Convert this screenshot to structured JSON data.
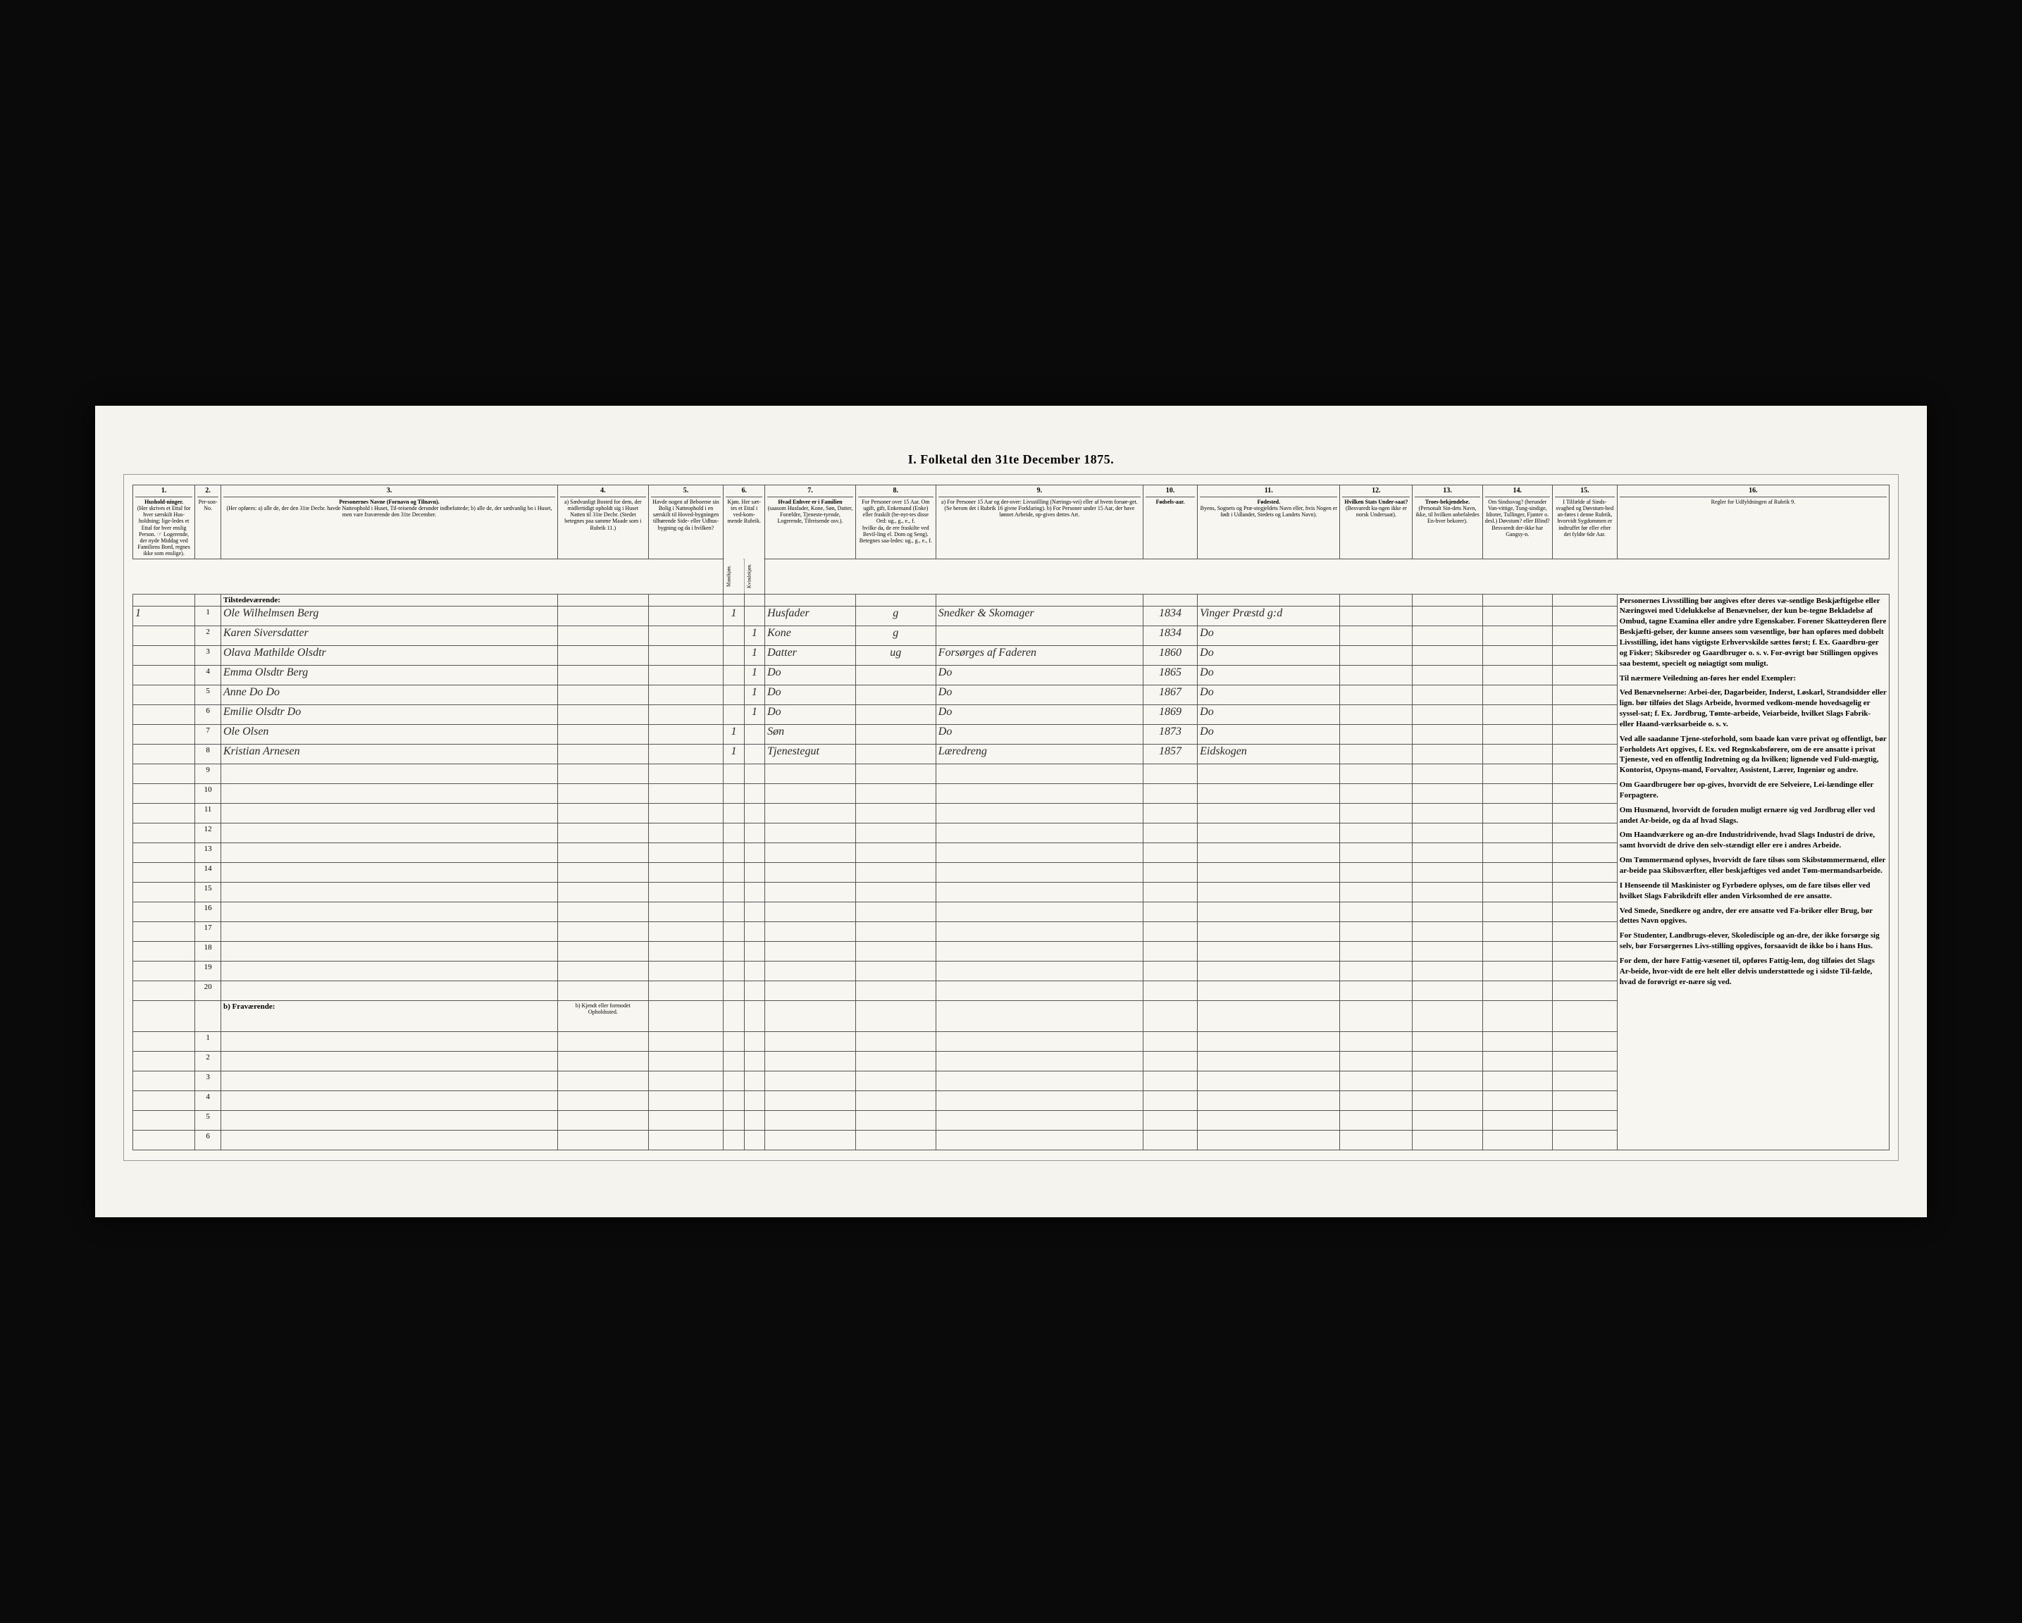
{
  "title": "I. Folketal den 31te December 1875.",
  "columns": {
    "1": {
      "num": "1.",
      "head": "Hushold-ninger.",
      "sub": "(Her skrives et Ettal for hver særskilt Hus-holdning; lige-ledes et Ettal for hver enslig Person. ☞ Logerende, der nyde Middag ved Familiens Bord, regnes ikke som enslige)."
    },
    "2": {
      "num": "2.",
      "head": "Per-son-No."
    },
    "3": {
      "num": "3.",
      "head": "Personernes Navne (Fornavn og Tilnavn).",
      "sub": "(Her opføres: a) alle de, der den 31te Decbr. havde Natteophold i Huset, Til-reisende derunder indbefattede; b) alle de, der sædvanlig bo i Huset, men vare fraværende den 31te December."
    },
    "4": {
      "num": "4.",
      "head": "a) Sædvanligt Bosted for dem, der midlertidigt opholdt sig i Huset Natten til 31te Decbr. (Stedet betegnes paa samme Maade som i Rubrik 11.)"
    },
    "5": {
      "num": "5.",
      "head": "Havde nogen af Beboerne sin Bolig i Natteophold i en særskilt til Hoved-bygningen tilhørende Side- eller Udhus-bygning og da i hvilken?"
    },
    "6": {
      "num": "6.",
      "head": "Kjøn. Her sæt-tes et Ettal i ved-kom-mende Rubrik.",
      "sub_a": "Mandkjøn.",
      "sub_b": "Kvindekjøn."
    },
    "7": {
      "num": "7.",
      "head": "Hvad Enhver er i Familien",
      "sub": "(saasom Husfader, Kone, Søn, Datter, Forældre, Tjeneste-tyende, Logerende, Tilreisende osv.)."
    },
    "8": {
      "num": "8.",
      "head": "For Personer over 15 Aar. Om ugift, gift, Enkemand (Enke) eller fraskilt (be-nyt-tes disse Ord: ug., g., e., f.",
      "sub": "hvilke da, de ere fraskilte ved Bevil-ling el. Dom og Seng). Betegnes saa-ledes: ug., g., e., f."
    },
    "9": {
      "num": "9.",
      "head": "a) For Personer 15 Aar og der-over: Livsstilling (Nærings-vei) eller af hvem forsør-get. (Se herom det i Rubrik 16 givne Forklaring). b) For Personer under 15 Aar, der have lønnet Arbeide, op-gives dettes Art."
    },
    "10": {
      "num": "10.",
      "head": "Fødsels-aar."
    },
    "11": {
      "num": "11.",
      "head": "Fødested.",
      "sub": "Byens, Sognets og Præ-stegjeldets Navn eller, hvis Nogen er født i Udlandet, Stedets og Landets Navn)."
    },
    "12": {
      "num": "12.",
      "head": "Hvilken Stats Under-saat?",
      "sub": "(Besvaredt ku-ngen ikke er norsk Undersaat)."
    },
    "13": {
      "num": "13.",
      "head": "Troes-bekjendelse.",
      "sub": "(Personalt Sin-dets Navn, ikke, til hvilken anbefaledes En-hver bekorer)."
    },
    "14": {
      "num": "14.",
      "head": "Om Sindssvag? (herunder Van-vittige, Tung-sindige, Idioter, Tullinger, Fjanter o. desl.) Døvstum? eller Blind? Besvaredt der-ikke har Gangsy-n."
    },
    "15": {
      "num": "15.",
      "head": "I Tilfælde af Sinds-svaghed og Døvstum-hed an-føres i denne Rubrik, hvorvidt Sygdommen er indtruffet før eller efter det fyldte 6de Aar."
    },
    "16": {
      "num": "16.",
      "head": "Regler for Udfyldningen af Rubrik 9."
    }
  },
  "section_present": "Tilstedeværende:",
  "section_absent": "b) Fraværende:",
  "absent_col4": "b) Kjendt eller formodet Opholdssted.",
  "rows": [
    {
      "n": "1",
      "hh": "1",
      "name": "Ole Wilhelmsen Berg",
      "mk": "1",
      "kk": "",
      "fam": "Husfader",
      "civ": "g",
      "occ": "Snedker & Skomager",
      "year": "1834",
      "place": "Vinger Præstd g:d",
      "do": ""
    },
    {
      "n": "2",
      "hh": "",
      "name": "Karen Siversdatter",
      "mk": "",
      "kk": "1",
      "fam": "Kone",
      "civ": "g",
      "occ": "",
      "year": "1834",
      "place": "Do",
      "do": ""
    },
    {
      "n": "3",
      "hh": "",
      "name": "Olava Mathilde Olsdtr",
      "mk": "",
      "kk": "1",
      "fam": "Datter",
      "civ": "ug",
      "occ": "Forsørges af Faderen",
      "year": "1860",
      "place": "Do",
      "do": ""
    },
    {
      "n": "4",
      "hh": "",
      "name": "Emma Olsdtr Berg",
      "mk": "",
      "kk": "1",
      "fam": "Do",
      "civ": "",
      "occ": "Do",
      "year": "1865",
      "place": "Do",
      "do": ""
    },
    {
      "n": "5",
      "hh": "",
      "name": "Anne Do Do",
      "mk": "",
      "kk": "1",
      "fam": "Do",
      "civ": "",
      "occ": "Do",
      "year": "1867",
      "place": "Do",
      "do": ""
    },
    {
      "n": "6",
      "hh": "",
      "name": "Emilie Olsdtr Do",
      "mk": "",
      "kk": "1",
      "fam": "Do",
      "civ": "",
      "occ": "Do",
      "year": "1869",
      "place": "Do",
      "do": ""
    },
    {
      "n": "7",
      "hh": "",
      "name": "Ole Olsen",
      "mk": "1",
      "kk": "",
      "fam": "Søn",
      "civ": "",
      "occ": "Do",
      "year": "1873",
      "place": "Do",
      "do": ""
    },
    {
      "n": "8",
      "hh": "",
      "name": "Kristian Arnesen",
      "mk": "1",
      "kk": "",
      "fam": "Tjenestegut",
      "civ": "",
      "occ": "Læredreng",
      "year": "1857",
      "place": "Eidskogen",
      "do": ""
    }
  ],
  "empty_rows": [
    "9",
    "10",
    "11",
    "12",
    "13",
    "14",
    "15",
    "16",
    "17",
    "18",
    "19",
    "20"
  ],
  "absent_rows": [
    "1",
    "2",
    "3",
    "4",
    "5",
    "6"
  ],
  "instructions": {
    "p1": "Personernes Livsstilling bør angives efter deres væ-sentlige Beskjæftigelse eller Næringsvei med Udelukkelse af Benævnelser, der kun be-tegne Bekladelse af Ombud, tagne Examina eller andre ydre Egenskaber. Forener Skatteyderen flere Beskjæfti-gelser, der kunne ansees som væsentlige, bør han opføres med dobbelt Livsstilling, idet hans vigtigste Erhvervskilde sættes først; f. Ex. Gaardbru-ger og Fisker; Skibsreder og Gaardbruger o. s. v. For-øvrigt bør Stillingen opgives saa bestemt, specielt og nøiagtigt som muligt.",
    "p2": "Til nærmere Veiledning an-føres her endel Exempler:",
    "p3": "Ved Benævnelserne: Arbei-der, Dagarbeider, Inderst, Løskarl, Strandsidder eller lign. bør tilføies det Slags Arbeide, hvormed vedkom-mende hovedsagelig er syssel-sat; f. Ex. Jordbrug, Tømte-arbeide, Veiarbeide, hvilket Slags Fabrik- eller Haand-værksarbeide o. s. v.",
    "p4": "Ved alle saadanne Tjene-steforhold, som baade kan være privat og offentligt, bør Forholdets Art opgives, f. Ex. ved Regnskabsførere, om de ere ansatte i privat Tjeneste, ved en offentlig Indretning og da hvilken; lignende ved Fuld-mægtig, Kontorist, Opsyns-mand, Forvalter, Assistent, Lærer, Ingeniør og andre.",
    "p5": "Om Gaardbrugere bør op-gives, hvorvidt de ere Selveiere, Lei-lændinge eller Forpagtere.",
    "p6": "Om Husmænd, hvorvidt de foruden muligt ernære sig ved Jordbrug eller ved andet Ar-beide, og da af hvad Slags.",
    "p7": "Om Haandværkere og an-dre Industridrivende, hvad Slags Industri de drive, samt hvorvidt de drive den selv-stændigt eller ere i andres Arbeide.",
    "p8": "Om Tømmermænd oplyses, hvorvidt de fare tilsøs som Skibstømmermænd, eller ar-beide paa Skibsværfter, eller beskjæftiges ved andet Tøm-mermandsarbeide.",
    "p9": "I Henseende til Maskinister og Fyrbødere oplyses, om de fare tilsøs eller ved hvilket Slags Fabrikdrift eller anden Virksomhed de ere ansatte.",
    "p10": "Ved Smede, Snedkere og andre, der ere ansatte ved Fa-briker eller Brug, bør dettes Navn opgives.",
    "p11": "For Studenter, Landbrugs-elever, Skoledisciple og an-dre, der ikke forsørge sig selv, bør Forsørgernes Livs-stilling opgives, forsaavidt de ikke bo i hans Hus.",
    "p12": "For dem, der høre Fattig-væsenet til, opføres Fattig-lem, dog tilføies det Slags Ar-beide, hvor-vidt de ere helt eller delvis understøttede og i sidste Til-fælde, hvad de forøvrigt er-nære sig ved."
  },
  "colors": {
    "paper": "#f8f6f0",
    "frame_bg": "#f5f3ee",
    "border": "#555555",
    "ink": "#2a2a2a",
    "outer": "#0a0a0a"
  }
}
